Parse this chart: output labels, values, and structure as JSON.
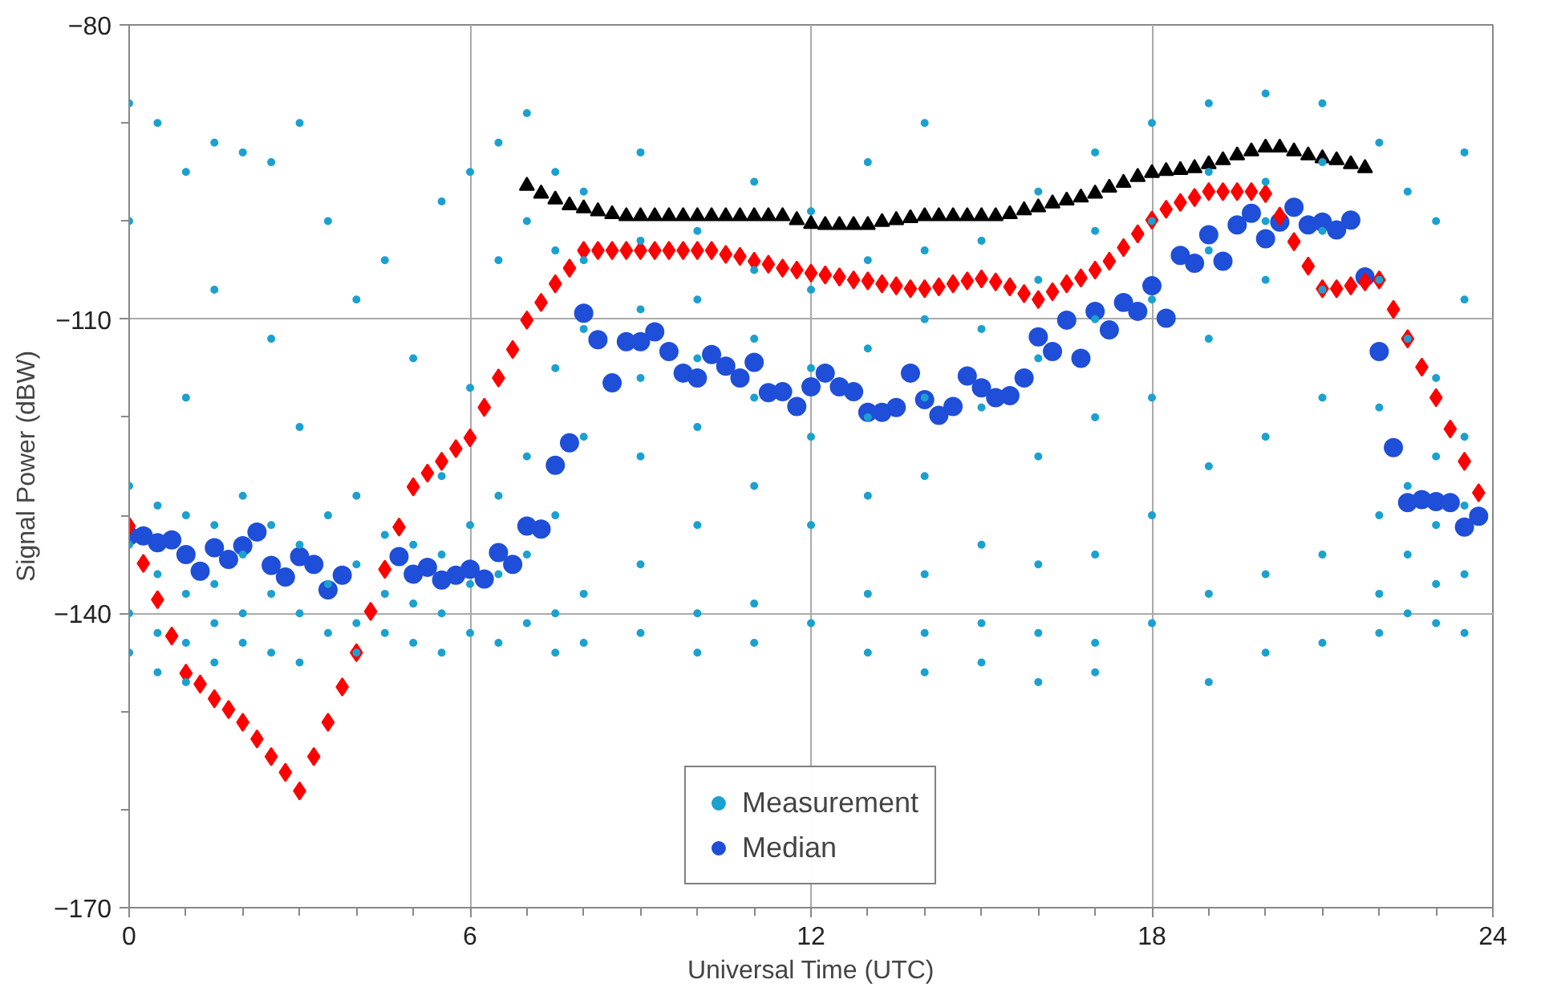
{
  "chart_data": {
    "type": "scatter",
    "xlabel": "Universal Time (UTC)",
    "ylabel": "Signal Power (dBW)",
    "xlim": [
      0,
      24
    ],
    "ylim": [
      -170,
      -80
    ],
    "xticks": [
      0,
      {
        "value": 1,
        "label": null
      },
      {
        "value": 2,
        "label": null
      },
      {
        "value": 3,
        "label": null
      },
      {
        "value": 4,
        "label": null
      },
      {
        "value": 5,
        "label": null
      },
      6,
      {
        "value": 7,
        "label": null
      },
      {
        "value": 8,
        "label": null
      },
      {
        "value": 9,
        "label": null
      },
      {
        "value": 10,
        "label": null
      },
      {
        "value": 11,
        "label": null
      },
      12,
      {
        "value": 13,
        "label": null
      },
      {
        "value": 14,
        "label": null
      },
      {
        "value": 15,
        "label": null
      },
      {
        "value": 16,
        "label": null
      },
      {
        "value": 17,
        "label": null
      },
      18,
      {
        "value": 19,
        "label": null
      },
      {
        "value": 20,
        "label": null
      },
      {
        "value": 21,
        "label": null
      },
      {
        "value": 22,
        "label": null
      },
      {
        "value": 23,
        "label": null
      },
      24
    ],
    "yticks": [
      -170,
      {
        "value": -160,
        "label": null
      },
      {
        "value": -150,
        "label": null
      },
      -140,
      {
        "value": -130,
        "label": null
      },
      {
        "value": -120,
        "label": null
      },
      -110,
      {
        "value": -100,
        "label": null
      },
      {
        "value": -90,
        "label": null
      },
      -80
    ],
    "grid": true,
    "legend": "bottom",
    "series": [
      {
        "name": "Measurement",
        "color": "#1ba1d0",
        "marker": "circle",
        "x": [
          0,
          0,
          0,
          0,
          0,
          0,
          0.5,
          0.5,
          0.5,
          0.5,
          0.5,
          1,
          1,
          1,
          1,
          1,
          1,
          1.5,
          1.5,
          1.5,
          1.5,
          1.5,
          1.5,
          2,
          2,
          2,
          2,
          2,
          2.5,
          2.5,
          2.5,
          2.5,
          2.5,
          3,
          3,
          3,
          3,
          3,
          3.5,
          3.5,
          3.5,
          3.5,
          4,
          4,
          4,
          4,
          4,
          4.5,
          4.5,
          4.5,
          4.5,
          5,
          5,
          5,
          5,
          5.5,
          5.5,
          5.5,
          5.5,
          5.5,
          6,
          6,
          6,
          6,
          6,
          6.5,
          6.5,
          6.5,
          6.5,
          6.5,
          7,
          7,
          7,
          7,
          7,
          7.5,
          7.5,
          7.5,
          7.5,
          7.5,
          7.5,
          8,
          8,
          8,
          8,
          8,
          8,
          9,
          9,
          9,
          9,
          9,
          9,
          9,
          10,
          10,
          10,
          10,
          10,
          10,
          10,
          11,
          11,
          11,
          11,
          11,
          11,
          11,
          12,
          12,
          12,
          12,
          12,
          12,
          13,
          13,
          13,
          13,
          13,
          13,
          13,
          14,
          14,
          14,
          14,
          14,
          14,
          14,
          14,
          15,
          15,
          15,
          15,
          15,
          15,
          16,
          16,
          16,
          16,
          16,
          16,
          16,
          17,
          17,
          17,
          17,
          17,
          17,
          17,
          18,
          18,
          18,
          18,
          18,
          18,
          19,
          19,
          19,
          19,
          19,
          19,
          19,
          20,
          20,
          20,
          20,
          20,
          20,
          20,
          21,
          21,
          21,
          21,
          21,
          21,
          21,
          22,
          22,
          22,
          22,
          22,
          22,
          22.5,
          22.5,
          22.5,
          22.5,
          22.5,
          23,
          23,
          23,
          23,
          23,
          23,
          23.5,
          23.5,
          23.5,
          23.5,
          23.5,
          23.5
        ],
        "values": [
          -88,
          -100,
          -127,
          -133,
          -140,
          -144,
          -90,
          -129,
          -136,
          -142,
          -146,
          -95,
          -118,
          -130,
          -138,
          -143,
          -147,
          -92,
          -107,
          -131,
          -137,
          -141,
          -145,
          -93,
          -128,
          -134,
          -140,
          -143,
          -94,
          -112,
          -131,
          -138,
          -144,
          -90,
          -121,
          -133,
          -140,
          -145,
          -100,
          -130,
          -137,
          -142,
          -108,
          -128,
          -135,
          -141,
          -144,
          -104,
          -132,
          -138,
          -142,
          -114,
          -133,
          -139,
          -143,
          -98,
          -126,
          -134,
          -140,
          -144,
          -95,
          -117,
          -131,
          -137,
          -142,
          -92,
          -104,
          -128,
          -136,
          -143,
          -89,
          -100,
          -124,
          -134,
          -141,
          -95,
          -103,
          -115,
          -130,
          -140,
          -144,
          -97,
          -104,
          -111,
          -122,
          -138,
          -143,
          -93,
          -102,
          -109,
          -116,
          -124,
          -135,
          -142,
          -101,
          -108,
          -114,
          -121,
          -131,
          -140,
          -144,
          -96,
          -105,
          -112,
          -118,
          -127,
          -139,
          -143,
          -99,
          -107,
          -115,
          -122,
          -131,
          -141,
          -94,
          -104,
          -113,
          -120,
          -128,
          -138,
          -144,
          -90,
          -103,
          -110,
          -118,
          -126,
          -136,
          -142,
          -146,
          -102,
          -111,
          -119,
          -133,
          -141,
          -145,
          -97,
          -106,
          -114,
          -124,
          -135,
          -142,
          -147,
          -93,
          -101,
          -110,
          -120,
          -134,
          -143,
          -146,
          -90,
          -100,
          -108,
          -118,
          -130,
          -141,
          -88,
          -95,
          -103,
          -112,
          -125,
          -138,
          -147,
          -87,
          -96,
          -100,
          -106,
          -122,
          -136,
          -144,
          -88,
          -94,
          -101,
          -107,
          -118,
          -134,
          -143,
          -92,
          -106,
          -119,
          -130,
          -138,
          -142,
          -97,
          -112,
          -127,
          -134,
          -140,
          -100,
          -116,
          -124,
          -131,
          -137,
          -141,
          -93,
          -108,
          -122,
          -129,
          -136,
          -142
        ]
      },
      {
        "name": "Median",
        "color": "#1f4fd8",
        "marker": "circle",
        "x": [
          0,
          0.25,
          0.5,
          0.75,
          1,
          1.25,
          1.5,
          1.75,
          2,
          2.25,
          2.5,
          2.75,
          3,
          3.25,
          3.5,
          3.75,
          4.75,
          5,
          5.25,
          5.5,
          5.75,
          6,
          6.25,
          6.5,
          6.75,
          7,
          7.25,
          7.5,
          7.75,
          8,
          8.25,
          8.5,
          8.75,
          9,
          9.25,
          9.5,
          9.75,
          10,
          10.25,
          10.5,
          10.75,
          11,
          11.25,
          11.5,
          11.75,
          12,
          12.25,
          12.5,
          12.75,
          13,
          13.25,
          13.5,
          13.75,
          14,
          14.25,
          14.5,
          14.75,
          15,
          15.25,
          15.5,
          15.75,
          16,
          16.25,
          16.5,
          16.75,
          17,
          17.25,
          17.5,
          17.75,
          18,
          18.25,
          18.5,
          18.75,
          19,
          19.25,
          19.5,
          19.75,
          20,
          20.25,
          20.5,
          20.75,
          21,
          21.25,
          21.5,
          21.75,
          22,
          22.25,
          22.5,
          22.75,
          23,
          23.25,
          23.5,
          23.75
        ],
        "values": [
          -132.1,
          -132.1,
          -132.8,
          -132.5,
          -134.0,
          -135.7,
          -133.3,
          -134.5,
          -133.1,
          -131.7,
          -135.1,
          -136.3,
          -134.2,
          -135.0,
          -137.6,
          -136.1,
          -134.2,
          -136.0,
          -135.3,
          -136.6,
          -136.1,
          -135.5,
          -136.5,
          -133.8,
          -135.0,
          -131.1,
          -131.4,
          -124.9,
          -122.6,
          -109.4,
          -112.1,
          -116.5,
          -112.3,
          -112.3,
          -111.3,
          -113.3,
          -115.5,
          -116.0,
          -113.6,
          -114.8,
          -116.0,
          -114.4,
          -117.5,
          -117.4,
          -118.9,
          -116.9,
          -115.5,
          -116.9,
          -117.4,
          -119.5,
          -119.5,
          -119.0,
          -115.5,
          -118.2,
          -119.8,
          -118.9,
          -115.8,
          -117.0,
          -118.0,
          -117.8,
          -116.0,
          -111.8,
          -113.3,
          -110.1,
          -114.0,
          -109.2,
          -111.1,
          -108.3,
          -109.2,
          -106.6,
          -109.9,
          -103.5,
          -104.3,
          -101.4,
          -104.1,
          -100.4,
          -99.2,
          -101.8,
          -100.1,
          -98.6,
          -100.4,
          -100.1,
          -100.9,
          -99.9,
          -105.7,
          -113.3,
          -123.1,
          -128.7,
          -128.4,
          -128.6,
          -128.7,
          -131.2,
          -130.1
        ]
      },
      {
        "color": "#ff0000",
        "marker": "diamond",
        "x": [
          0,
          0.25,
          0.5,
          0.75,
          1,
          1.25,
          1.5,
          1.75,
          2,
          2.25,
          2.5,
          2.75,
          3,
          3.25,
          3.5,
          3.75,
          4,
          4.25,
          4.5,
          4.75,
          5,
          5.25,
          5.5,
          5.75,
          6,
          6.25,
          6.5,
          6.75,
          7,
          7.25,
          7.5,
          7.75,
          8,
          8.25,
          8.5,
          8.75,
          9,
          9.25,
          9.5,
          9.75,
          10,
          10.25,
          10.5,
          10.75,
          11,
          11.25,
          11.5,
          11.75,
          12,
          12.25,
          12.5,
          12.75,
          13,
          13.25,
          13.5,
          13.75,
          14,
          14.25,
          14.5,
          14.75,
          15,
          15.25,
          15.5,
          15.75,
          16,
          16.25,
          16.5,
          16.75,
          17,
          17.25,
          17.5,
          17.75,
          18,
          18.25,
          18.5,
          18.75,
          19,
          19.25,
          19.5,
          19.75,
          20,
          20.25,
          20.5,
          20.75,
          21,
          21.25,
          21.5,
          21.75,
          22,
          22.25,
          22.5,
          22.75,
          23,
          23.25,
          23.5,
          23.75
        ],
        "values": [
          -131.1,
          -134.9,
          -138.6,
          -142.3,
          -146.1,
          -147.2,
          -148.7,
          -149.8,
          -151.1,
          -152.8,
          -154.6,
          -156.2,
          -158.1,
          -154.6,
          -151.1,
          -147.5,
          -144.0,
          -139.8,
          -135.5,
          -131.2,
          -127.1,
          -125.7,
          -124.5,
          -123.2,
          -122.1,
          -119.0,
          -116.0,
          -113.1,
          -110.1,
          -108.3,
          -106.4,
          -104.8,
          -103.0,
          -103.0,
          -103.0,
          -103.0,
          -103.0,
          -103.0,
          -103.0,
          -103.0,
          -103.0,
          -103.0,
          -103.4,
          -103.6,
          -104.1,
          -104.4,
          -104.8,
          -105.0,
          -105.3,
          -105.5,
          -105.7,
          -106.0,
          -106.1,
          -106.4,
          -106.6,
          -106.9,
          -106.9,
          -106.7,
          -106.4,
          -106.1,
          -105.9,
          -106.2,
          -106.7,
          -107.4,
          -108.0,
          -107.2,
          -106.4,
          -105.8,
          -105.0,
          -104.1,
          -102.7,
          -101.3,
          -99.9,
          -98.8,
          -98.1,
          -97.6,
          -97.0,
          -97.0,
          -97.0,
          -97.0,
          -97.2,
          -99.5,
          -102.1,
          -104.6,
          -106.9,
          -106.9,
          -106.6,
          -106.2,
          -106.0,
          -109.0,
          -112.0,
          -114.9,
          -118.0,
          -121.2,
          -124.5,
          -127.7
        ]
      },
      {
        "color": "#000000",
        "marker": "triangle",
        "x": [
          7,
          7.25,
          7.5,
          7.75,
          8,
          8.25,
          8.5,
          8.75,
          9,
          9.25,
          9.5,
          9.75,
          10,
          10.25,
          10.5,
          10.75,
          11,
          11.25,
          11.5,
          11.75,
          12,
          12.25,
          12.5,
          12.75,
          13,
          13.25,
          13.5,
          13.75,
          14,
          14.25,
          14.5,
          14.75,
          15,
          15.25,
          15.5,
          15.75,
          16,
          16.25,
          16.5,
          16.75,
          17,
          17.25,
          17.5,
          17.75,
          18,
          18.25,
          18.5,
          18.75,
          19,
          19.25,
          19.5,
          19.75,
          20,
          20.25,
          20.5,
          20.75,
          21,
          21.25,
          21.5,
          21.75
        ],
        "values": [
          -96.4,
          -97.2,
          -97.8,
          -98.4,
          -98.7,
          -99.0,
          -99.3,
          -99.5,
          -99.5,
          -99.5,
          -99.5,
          -99.5,
          -99.5,
          -99.5,
          -99.5,
          -99.5,
          -99.5,
          -99.5,
          -99.5,
          -99.9,
          -100.3,
          -100.4,
          -100.4,
          -100.4,
          -100.4,
          -100.1,
          -99.9,
          -99.7,
          -99.5,
          -99.5,
          -99.5,
          -99.5,
          -99.5,
          -99.5,
          -99.3,
          -98.9,
          -98.6,
          -98.2,
          -97.9,
          -97.6,
          -97.2,
          -96.6,
          -96.1,
          -95.5,
          -95.1,
          -94.9,
          -94.8,
          -94.6,
          -94.2,
          -93.8,
          -93.3,
          -92.9,
          -92.5,
          -92.5,
          -92.9,
          -93.3,
          -93.6,
          -93.8,
          -94.2,
          -94.6
        ]
      }
    ]
  }
}
